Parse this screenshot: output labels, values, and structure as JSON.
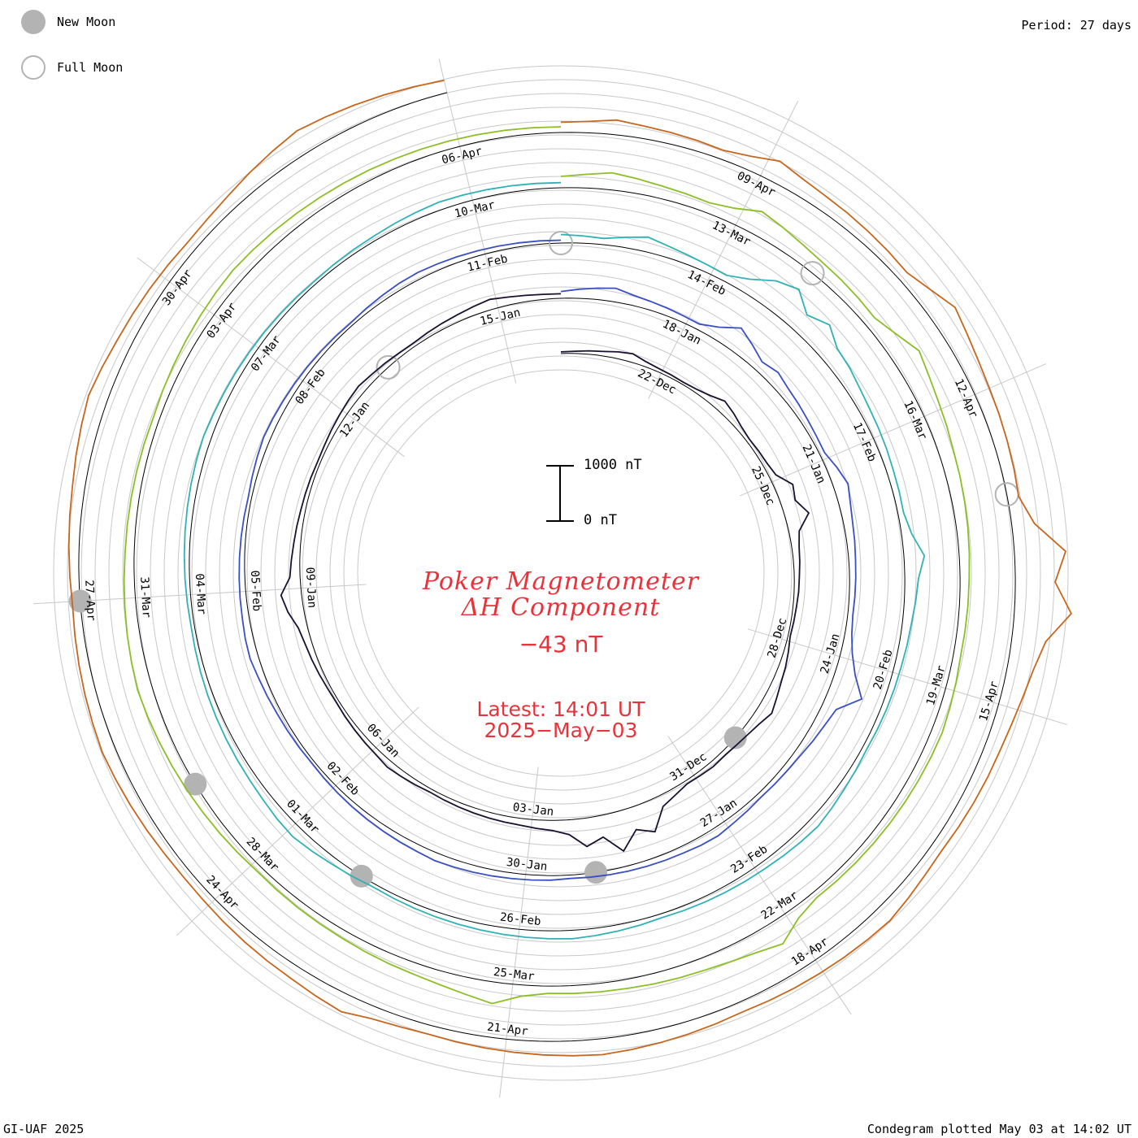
{
  "legend": {
    "new_moon": {
      "label": "New Moon",
      "color": "#b3b3b3"
    },
    "full_moon": {
      "label": "Full Moon",
      "color": "#b3b3b3"
    }
  },
  "period": "Period: 27 days",
  "footer": {
    "credit": "GI-UAF 2025",
    "plotted": "Condegram plotted May 03 at 14:02 UT"
  },
  "title": {
    "line1": "Poker Magnetometer",
    "line2": "ΔH Component"
  },
  "current_value": "−43 nT",
  "latest": {
    "time": "Latest: 14:01 UT",
    "date": "2025−May−03"
  },
  "scale": {
    "top": "1000 nT",
    "bottom": "0 nT"
  },
  "chart_data": {
    "type": "line",
    "subtype": "condegram-spiral",
    "period_days": 27,
    "start": "2024-12-20",
    "end": "2025-05-03",
    "units": "nT",
    "date_labels": [
      {
        "date": "2024-12-22",
        "label": "22-Dec"
      },
      {
        "date": "2024-12-25",
        "label": "25-Dec"
      },
      {
        "date": "2024-12-28",
        "label": "28-Dec"
      },
      {
        "date": "2024-12-31",
        "label": "31-Dec"
      },
      {
        "date": "2025-01-03",
        "label": "03-Jan"
      },
      {
        "date": "2025-01-06",
        "label": "06-Jan"
      },
      {
        "date": "2025-01-09",
        "label": "09-Jan"
      },
      {
        "date": "2025-01-12",
        "label": "12-Jan"
      },
      {
        "date": "2025-01-15",
        "label": "15-Jan"
      },
      {
        "date": "2025-01-18",
        "label": "18-Jan"
      },
      {
        "date": "2025-01-21",
        "label": "21-Jan"
      },
      {
        "date": "2025-01-24",
        "label": "24-Jan"
      },
      {
        "date": "2025-01-27",
        "label": "27-Jan"
      },
      {
        "date": "2025-01-30",
        "label": "30-Jan"
      },
      {
        "date": "2025-02-02",
        "label": "02-Feb"
      },
      {
        "date": "2025-02-05",
        "label": "05-Feb"
      },
      {
        "date": "2025-02-08",
        "label": "08-Feb"
      },
      {
        "date": "2025-02-11",
        "label": "11-Feb"
      },
      {
        "date": "2025-02-14",
        "label": "14-Feb"
      },
      {
        "date": "2025-02-17",
        "label": "17-Feb"
      },
      {
        "date": "2025-02-20",
        "label": "20-Feb"
      },
      {
        "date": "2025-02-23",
        "label": "23-Feb"
      },
      {
        "date": "2025-02-26",
        "label": "26-Feb"
      },
      {
        "date": "2025-03-01",
        "label": "01-Mar"
      },
      {
        "date": "2025-03-04",
        "label": "04-Mar"
      },
      {
        "date": "2025-03-07",
        "label": "07-Mar"
      },
      {
        "date": "2025-03-10",
        "label": "10-Mar"
      },
      {
        "date": "2025-03-13",
        "label": "13-Mar"
      },
      {
        "date": "2025-03-16",
        "label": "16-Mar"
      },
      {
        "date": "2025-03-19",
        "label": "19-Mar"
      },
      {
        "date": "2025-03-22",
        "label": "22-Mar"
      },
      {
        "date": "2025-03-25",
        "label": "25-Mar"
      },
      {
        "date": "2025-03-28",
        "label": "28-Mar"
      },
      {
        "date": "2025-03-31",
        "label": "31-Mar"
      },
      {
        "date": "2025-04-03",
        "label": "03-Apr"
      },
      {
        "date": "2025-04-06",
        "label": "06-Apr"
      },
      {
        "date": "2025-04-09",
        "label": "09-Apr"
      },
      {
        "date": "2025-04-12",
        "label": "12-Apr"
      },
      {
        "date": "2025-04-15",
        "label": "15-Apr"
      },
      {
        "date": "2025-04-18",
        "label": "18-Apr"
      },
      {
        "date": "2025-04-21",
        "label": "21-Apr"
      },
      {
        "date": "2025-04-24",
        "label": "24-Apr"
      },
      {
        "date": "2025-04-27",
        "label": "27-Apr"
      },
      {
        "date": "2025-04-30",
        "label": "30-Apr"
      }
    ],
    "moon_phases": [
      {
        "date": "2024-12-30",
        "phase": "new"
      },
      {
        "date": "2025-01-13",
        "phase": "full"
      },
      {
        "date": "2025-01-29",
        "phase": "new"
      },
      {
        "date": "2025-02-12",
        "phase": "full"
      },
      {
        "date": "2025-02-28",
        "phase": "new"
      },
      {
        "date": "2025-03-14",
        "phase": "full"
      },
      {
        "date": "2025-03-29",
        "phase": "new"
      },
      {
        "date": "2025-04-13",
        "phase": "full"
      },
      {
        "date": "2025-04-27",
        "phase": "new"
      }
    ],
    "series": [
      {
        "start": "2024-12-20",
        "end": "2025-01-16",
        "color": "#1a1030",
        "values": [
          30,
          40,
          60,
          80,
          120,
          150,
          90,
          60,
          50,
          40,
          60,
          110,
          200,
          150,
          90,
          60,
          70,
          80,
          120,
          320,
          260,
          420,
          180,
          130,
          110,
          90,
          80,
          60,
          50,
          40,
          80,
          120,
          150,
          200,
          260,
          180,
          130,
          100,
          80,
          90,
          70,
          60,
          120,
          200,
          550,
          400,
          700,
          380,
          500,
          260,
          180,
          150,
          120,
          110,
          100,
          90,
          80,
          70,
          60,
          80,
          100,
          120,
          90,
          80,
          70,
          60,
          50,
          60,
          80,
          100,
          120,
          160,
          280,
          360,
          180,
          150,
          120,
          100,
          80,
          70,
          60,
          50,
          60,
          80,
          100,
          120,
          140,
          110,
          90,
          70,
          60,
          80,
          100,
          120,
          150,
          180,
          140,
          110,
          90,
          80
        ]
      },
      {
        "start": "2025-01-16",
        "end": "2025-02-12",
        "color": "#3a4fc4",
        "values": [
          120,
          160,
          200,
          240,
          180,
          150,
          130,
          110,
          100,
          220,
          420,
          300,
          180,
          240,
          180,
          150,
          120,
          100,
          90,
          180,
          260,
          200,
          160,
          140,
          120,
          110,
          100,
          90,
          120,
          200,
          350,
          600,
          260,
          200,
          160,
          120,
          100,
          90,
          80,
          100,
          120,
          150,
          140,
          120,
          110,
          100,
          90,
          80,
          70,
          60,
          80,
          90,
          100,
          110,
          120,
          130,
          140,
          120,
          110,
          100,
          90,
          80,
          70,
          60,
          50,
          60,
          70,
          80,
          100,
          120,
          150,
          140,
          120,
          110,
          100,
          90,
          80,
          70,
          60,
          80,
          100,
          120,
          110,
          100,
          90,
          80,
          70,
          60,
          50,
          70,
          90,
          110,
          120,
          110,
          100,
          90,
          80,
          70,
          60,
          50
        ]
      },
      {
        "start": "2025-02-12",
        "end": "2025-03-11",
        "color": "#2fb2b5",
        "values": [
          150,
          130,
          110,
          180,
          260,
          200,
          160,
          130,
          110,
          250,
          480,
          600,
          350,
          500,
          320,
          280,
          220,
          180,
          160,
          140,
          120,
          110,
          100,
          180,
          360,
          240,
          200,
          160,
          140,
          120,
          110,
          100,
          90,
          80,
          100,
          120,
          150,
          180,
          160,
          140,
          120,
          110,
          100,
          90,
          80,
          70,
          90,
          110,
          130,
          150,
          140,
          130,
          120,
          110,
          100,
          90,
          80,
          70,
          60,
          90,
          120,
          160,
          200,
          180,
          150,
          130,
          120,
          110,
          100,
          90,
          80,
          70,
          60,
          70,
          80,
          90,
          100,
          110,
          120,
          130,
          140,
          120,
          110,
          100,
          90,
          80,
          70,
          60,
          50,
          60,
          70,
          80,
          100,
          120,
          140,
          130,
          120,
          110,
          100,
          90
        ]
      },
      {
        "start": "2025-03-11",
        "end": "2025-04-07",
        "color": "#8cbf26",
        "values": [
          200,
          240,
          300,
          260,
          220,
          200,
          180,
          260,
          420,
          360,
          300,
          260,
          240,
          220,
          200,
          320,
          480,
          400,
          340,
          300,
          260,
          240,
          220,
          200,
          180,
          160,
          150,
          140,
          130,
          150,
          170,
          190,
          180,
          170,
          160,
          150,
          140,
          130,
          120,
          110,
          200,
          420,
          320,
          260,
          220,
          200,
          180,
          160,
          150,
          140,
          130,
          200,
          380,
          300,
          240,
          200,
          180,
          160,
          140,
          130,
          120,
          110,
          100,
          120,
          140,
          160,
          180,
          200,
          220,
          240,
          260,
          240,
          220,
          200,
          180,
          160,
          150,
          140,
          130,
          120,
          110,
          130,
          150,
          170,
          190,
          210,
          230,
          220,
          210,
          200,
          190,
          180,
          170,
          160,
          150,
          140,
          130,
          120,
          110,
          100
        ]
      },
      {
        "start": "2025-04-07",
        "end": "2025-05-03",
        "color": "#c7661c",
        "values": [
          180,
          200,
          260,
          220,
          200,
          180,
          160,
          240,
          380,
          300,
          260,
          240,
          220,
          200,
          180,
          300,
          460,
          380,
          320,
          280,
          260,
          240,
          220,
          200,
          400,
          900,
          700,
          1000,
          600,
          460,
          380,
          320,
          280,
          260,
          240,
          220,
          200,
          220,
          260,
          300,
          280,
          260,
          240,
          220,
          200,
          180,
          200,
          220,
          240,
          260,
          280,
          260,
          240,
          220,
          200,
          180,
          160,
          180,
          220,
          320,
          280,
          240,
          220,
          200,
          180,
          160,
          150,
          160,
          180,
          200,
          220,
          240,
          220,
          200,
          180,
          160,
          140,
          160,
          180,
          200,
          220,
          260,
          300,
          340,
          300,
          260,
          240,
          220,
          200,
          180,
          200,
          240,
          300,
          360,
          420,
          380,
          340,
          300,
          260,
          220
        ]
      }
    ]
  }
}
